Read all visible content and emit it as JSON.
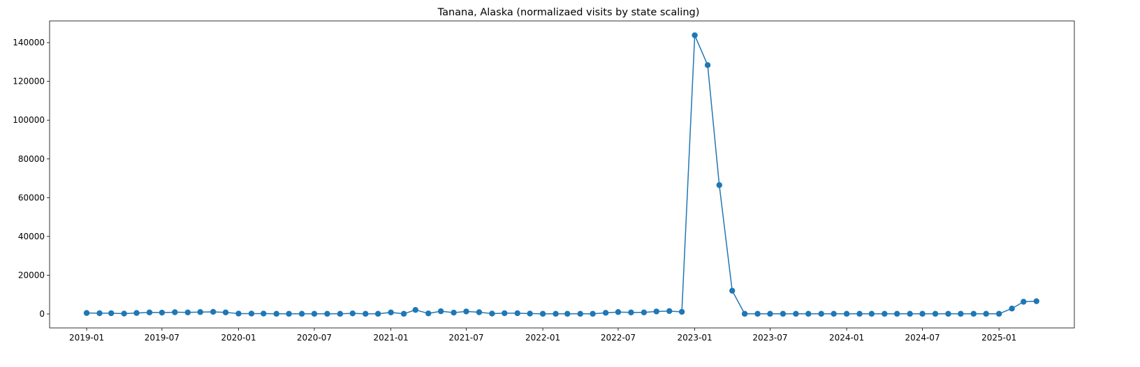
{
  "chart_data": {
    "type": "line",
    "title": "Tanana, Alaska (normalizaed visits by state scaling)",
    "xlabel": "",
    "ylabel": "",
    "grid": false,
    "legend": "none",
    "marker": "circle",
    "color": "#1f77b4",
    "x_start": "2019-01",
    "xlim": [
      "2018-10-04",
      "2025-07-01"
    ],
    "ylim": [
      -7200,
      151200
    ],
    "x_ticks": [
      "2019-01",
      "2019-07",
      "2020-01",
      "2020-07",
      "2021-01",
      "2021-07",
      "2022-01",
      "2022-07",
      "2023-01",
      "2023-07",
      "2024-01",
      "2024-07",
      "2025-01"
    ],
    "y_ticks": [
      "0",
      "20000",
      "40000",
      "60000",
      "80000",
      "100000",
      "120000",
      "140000"
    ],
    "series": [
      {
        "x": [
          "2019-01",
          "2019-02",
          "2019-03",
          "2019-04",
          "2019-05",
          "2019-06",
          "2019-07",
          "2019-08",
          "2019-09",
          "2019-10",
          "2019-11",
          "2019-12",
          "2020-01",
          "2020-02",
          "2020-03",
          "2020-04",
          "2020-05",
          "2020-06",
          "2020-07",
          "2020-08",
          "2020-09",
          "2020-10",
          "2020-11",
          "2020-12",
          "2021-01",
          "2021-02",
          "2021-03",
          "2021-04",
          "2021-05",
          "2021-06",
          "2021-07",
          "2021-08",
          "2021-09",
          "2021-10",
          "2021-11",
          "2021-12",
          "2022-01",
          "2022-02",
          "2022-03",
          "2022-04",
          "2022-05",
          "2022-06",
          "2022-07",
          "2022-08",
          "2022-09",
          "2022-10",
          "2022-11",
          "2022-12",
          "2023-01",
          "2023-02",
          "2023-03",
          "2023-04",
          "2023-05",
          "2023-06",
          "2023-07",
          "2023-08",
          "2023-09",
          "2023-10",
          "2023-11",
          "2023-12",
          "2024-01",
          "2024-02",
          "2024-03",
          "2024-04",
          "2024-05",
          "2024-06",
          "2024-07",
          "2024-08",
          "2024-09",
          "2024-10",
          "2024-11",
          "2024-12",
          "2025-01",
          "2025-02",
          "2025-03",
          "2025-04"
        ],
        "values": [
          500,
          400,
          400,
          200,
          500,
          800,
          700,
          900,
          800,
          1000,
          1100,
          800,
          200,
          200,
          200,
          100,
          100,
          100,
          100,
          100,
          100,
          300,
          100,
          100,
          800,
          100,
          2100,
          300,
          1400,
          700,
          1300,
          900,
          200,
          400,
          400,
          200,
          100,
          100,
          100,
          100,
          100,
          600,
          1000,
          800,
          800,
          1300,
          1500,
          1100,
          143800,
          128400,
          66500,
          12000,
          100,
          100,
          100,
          100,
          100,
          100,
          100,
          100,
          100,
          100,
          100,
          100,
          100,
          100,
          100,
          100,
          100,
          100,
          100,
          100,
          100,
          2800,
          6300,
          6600
        ]
      }
    ]
  }
}
